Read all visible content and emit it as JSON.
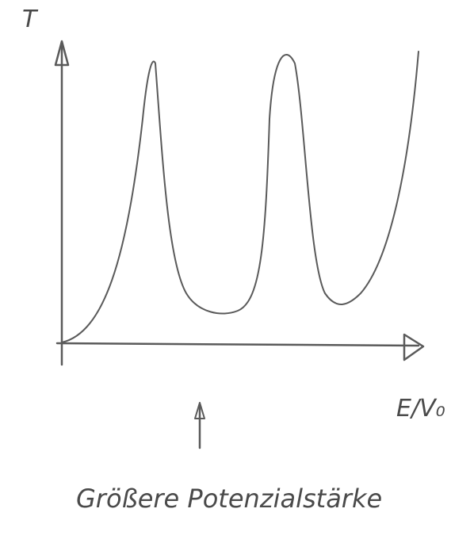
{
  "axis_labels": {
    "y": "T",
    "x": "E/V₀"
  },
  "caption": "Größere Potenzialstärke"
}
